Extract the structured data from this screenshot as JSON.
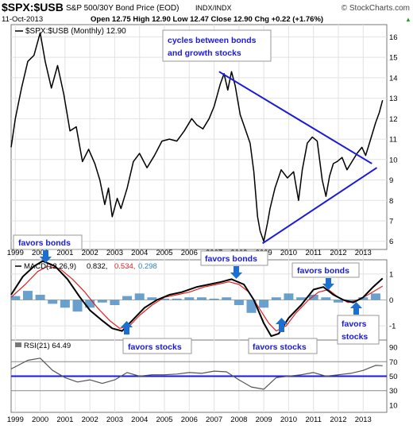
{
  "header": {
    "symbol": "$SPX:$USB",
    "description": "S&P 500/30Y Bond Price (EOD)",
    "exchange": "INDX/INDX",
    "watermark": "© StockCharts.com",
    "date": "11-Oct-2013",
    "ohlc": "Open 12.75  High 12.90  Low 12.47  Close 12.90  Chg +0.22 (+1.76%)",
    "ohlc_arrow": "▲"
  },
  "main_legend": "$SPX:$USB (Monthly) 12.90",
  "macd_legend": {
    "label": "MACD(12,26,9)",
    "v1": "0.832,",
    "v2": "0.534,",
    "v3": "0.298"
  },
  "rsi_legend": "RSI(21) 64.49",
  "annotations": {
    "cycles": [
      "cycles between bonds",
      "and growth stocks"
    ],
    "favors_bonds": "favors bonds",
    "favors_stocks": "favors stocks",
    "favors": "favors",
    "stocks": "stocks"
  },
  "colors": {
    "price": "#000000",
    "trend": "#1a1adc",
    "macd": "#000000",
    "signal": "#e02020",
    "hist": "#4f8fc6",
    "rsi_line": "#555555",
    "rsi_ref": "#1a1adc"
  },
  "chart_data": [
    {
      "type": "line",
      "title": "$SPX:$USB (Monthly)",
      "x_axis_labels": [
        "1999",
        "2000",
        "2001",
        "2002",
        "2003",
        "2004",
        "2005",
        "2006",
        "2007",
        "2008",
        "2009",
        "2010",
        "2011",
        "2012",
        "2013"
      ],
      "y_ticks": [
        6,
        7,
        8,
        9,
        10,
        11,
        12,
        13,
        14,
        15,
        16
      ],
      "ylim": [
        5.6,
        16.6
      ],
      "grid": true,
      "series": [
        {
          "name": "$SPX:$USB",
          "x": [
            1998.83,
            1999.0,
            1999.25,
            1999.5,
            1999.75,
            2000.0,
            2000.2,
            2000.45,
            2000.7,
            2000.95,
            2001.2,
            2001.45,
            2001.7,
            2001.95,
            2002.2,
            2002.4,
            2002.6,
            2002.75,
            2002.9,
            2003.1,
            2003.25,
            2003.5,
            2003.75,
            2004.0,
            2004.3,
            2004.6,
            2004.9,
            2005.2,
            2005.5,
            2005.8,
            2006.1,
            2006.3,
            2006.55,
            2006.8,
            2007.0,
            2007.25,
            2007.4,
            2007.55,
            2007.7,
            2007.85,
            2008.05,
            2008.25,
            2008.45,
            2008.6,
            2008.75,
            2008.85,
            2009.0,
            2009.15,
            2009.25,
            2009.45,
            2009.7,
            2009.95,
            2010.2,
            2010.4,
            2010.55,
            2010.75,
            2010.95,
            2011.15,
            2011.35,
            2011.5,
            2011.65,
            2011.8,
            2011.95,
            2012.15,
            2012.35,
            2012.55,
            2012.75,
            2012.95,
            2013.1,
            2013.3,
            2013.5,
            2013.65,
            2013.78
          ],
          "values": [
            10.6,
            12.0,
            13.5,
            14.8,
            15.1,
            16.2,
            14.8,
            13.5,
            14.6,
            13.2,
            11.4,
            11.6,
            9.9,
            10.5,
            9.8,
            9.0,
            7.8,
            8.6,
            7.2,
            8.1,
            7.6,
            8.6,
            9.9,
            10.3,
            9.6,
            10.2,
            10.9,
            11.0,
            10.9,
            11.4,
            12.0,
            11.7,
            11.5,
            12.0,
            12.6,
            13.7,
            14.2,
            13.4,
            14.3,
            13.6,
            12.2,
            11.5,
            10.8,
            9.4,
            7.2,
            6.5,
            6.0,
            6.9,
            7.6,
            8.6,
            9.5,
            9.1,
            9.4,
            8.0,
            9.5,
            10.8,
            11.1,
            10.9,
            9.0,
            8.2,
            9.2,
            9.8,
            9.9,
            10.1,
            9.5,
            9.9,
            10.3,
            10.6,
            10.2,
            11.0,
            11.8,
            12.3,
            12.9
          ]
        }
      ],
      "trendlines": [
        {
          "from": [
            2007.2,
            14.3
          ],
          "to": [
            2013.35,
            9.8
          ]
        },
        {
          "from": [
            2008.95,
            5.9
          ],
          "to": [
            2013.55,
            9.6
          ]
        }
      ]
    },
    {
      "type": "line",
      "title": "MACD(12,26,9)",
      "y_ticks": [
        1,
        0,
        -1
      ],
      "ylim": [
        -1.55,
        1.55
      ],
      "grid": true,
      "series": [
        {
          "name": "MACD",
          "x": [
            1998.83,
            1999.3,
            1999.75,
            2000.1,
            2000.6,
            2001.1,
            2001.6,
            2002.0,
            2002.5,
            2002.9,
            2003.3,
            2003.7,
            2004.2,
            2004.7,
            2005.2,
            2005.7,
            2006.3,
            2006.8,
            2007.3,
            2007.7,
            2008.2,
            2008.6,
            2009.0,
            2009.3,
            2009.6,
            2010.0,
            2010.5,
            2011.0,
            2011.4,
            2011.8,
            2012.2,
            2012.6,
            2013.0,
            2013.4,
            2013.78
          ],
          "values": [
            0.2,
            0.9,
            1.3,
            1.5,
            1.3,
            0.8,
            0.1,
            -0.4,
            -0.8,
            -1.1,
            -1.2,
            -0.8,
            -0.3,
            0.0,
            0.2,
            0.3,
            0.5,
            0.6,
            0.7,
            0.8,
            0.6,
            0.0,
            -0.9,
            -1.4,
            -1.3,
            -0.7,
            -0.2,
            0.4,
            0.5,
            0.2,
            0.0,
            -0.1,
            0.1,
            0.5,
            0.832
          ]
        },
        {
          "name": "Signal",
          "x": [
            1998.83,
            1999.4,
            1999.9,
            2000.3,
            2000.8,
            2001.3,
            2001.8,
            2002.3,
            2002.8,
            2003.2,
            2003.6,
            2004.0,
            2004.5,
            2005.0,
            2005.5,
            2006.0,
            2006.6,
            2007.1,
            2007.6,
            2008.0,
            2008.4,
            2008.8,
            2009.2,
            2009.5,
            2009.9,
            2010.3,
            2010.8,
            2011.2,
            2011.6,
            2012.0,
            2012.4,
            2012.8,
            2013.2,
            2013.78
          ],
          "values": [
            0.1,
            0.6,
            1.1,
            1.3,
            1.2,
            0.8,
            0.3,
            -0.3,
            -0.8,
            -1.1,
            -1.0,
            -0.6,
            -0.2,
            0.1,
            0.2,
            0.3,
            0.5,
            0.6,
            0.7,
            0.6,
            0.3,
            -0.3,
            -0.9,
            -1.2,
            -1.0,
            -0.5,
            0.0,
            0.3,
            0.4,
            0.1,
            -0.1,
            0.0,
            0.2,
            0.534
          ]
        },
        {
          "name": "Histogram",
          "x": [
            1999.0,
            1999.5,
            2000.0,
            2000.5,
            2001.0,
            2001.5,
            2002.0,
            2002.5,
            2003.0,
            2003.5,
            2004.0,
            2004.5,
            2005.0,
            2005.5,
            2006.0,
            2006.5,
            2007.0,
            2007.5,
            2008.0,
            2008.5,
            2009.0,
            2009.5,
            2010.0,
            2010.5,
            2011.0,
            2011.5,
            2012.0,
            2012.5,
            2013.0,
            2013.5
          ],
          "values": [
            0.15,
            0.35,
            0.2,
            -0.15,
            -0.3,
            -0.45,
            -0.3,
            -0.1,
            -0.2,
            0.15,
            0.25,
            0.1,
            0.05,
            0.05,
            0.1,
            0.1,
            0.05,
            0.1,
            -0.2,
            -0.5,
            -0.3,
            0.1,
            0.25,
            0.1,
            0.2,
            0.1,
            -0.1,
            -0.1,
            0.1,
            0.25
          ]
        }
      ]
    },
    {
      "type": "line",
      "title": "RSI(21)",
      "y_ticks": [
        90,
        70,
        50,
        30,
        10
      ],
      "ylim": [
        0,
        100
      ],
      "reference_lines": [
        70,
        50,
        30
      ],
      "series": [
        {
          "name": "RSI(21)",
          "x": [
            1998.83,
            1999.5,
            2000.0,
            2000.5,
            2001.0,
            2001.5,
            2002.0,
            2002.5,
            2003.0,
            2003.5,
            2004.0,
            2004.5,
            2005.0,
            2005.5,
            2006.0,
            2006.5,
            2007.0,
            2007.5,
            2008.0,
            2008.5,
            2009.0,
            2009.5,
            2010.0,
            2010.5,
            2011.0,
            2011.5,
            2012.0,
            2012.5,
            2013.0,
            2013.5,
            2013.78
          ],
          "values": [
            60,
            72,
            75,
            58,
            48,
            42,
            45,
            40,
            45,
            55,
            50,
            52,
            52,
            53,
            55,
            54,
            57,
            56,
            45,
            35,
            32,
            48,
            50,
            52,
            55,
            50,
            52,
            54,
            58,
            65,
            64.49
          ]
        }
      ]
    }
  ]
}
